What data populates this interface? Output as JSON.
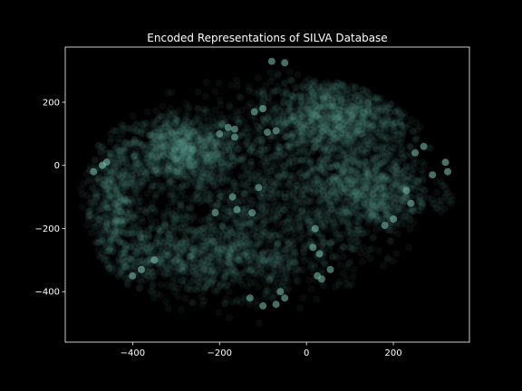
{
  "chart_data": {
    "type": "scatter",
    "title": "Encoded Representations of SILVA Database",
    "xlabel": "",
    "ylabel": "",
    "xlim": [
      -555,
      375
    ],
    "ylim": [
      -560,
      375
    ],
    "xticks": [
      -400,
      -200,
      0,
      200
    ],
    "yticks": [
      -400,
      -200,
      0,
      200
    ],
    "xtick_labels": [
      "−400",
      "−200",
      "0",
      "200"
    ],
    "ytick_labels": [
      "−400",
      "−200",
      "0",
      "200"
    ],
    "grid": false,
    "legend": "none",
    "colors": {
      "background": "#000000",
      "axes_face": "#000000",
      "spine": "#ffffff",
      "text": "#ffffff",
      "marker": "#7fc8b8"
    },
    "marker_alpha": 0.06,
    "clusters": [
      {
        "name": "upper-left dense region",
        "center": [
          -290,
          50
        ],
        "spread": [
          65,
          55
        ],
        "points": 900
      },
      {
        "name": "upper-right dense region",
        "center": [
          60,
          150
        ],
        "spread": [
          90,
          65
        ],
        "points": 1200
      },
      {
        "name": "right dense region",
        "center": [
          140,
          -80
        ],
        "spread": [
          75,
          70
        ],
        "points": 900
      },
      {
        "name": "outer arc lower-left",
        "center": [
          -230,
          -290
        ],
        "spread": [
          140,
          60
        ],
        "points": 900
      },
      {
        "name": "left edge",
        "center": [
          -440,
          -120
        ],
        "spread": [
          35,
          110
        ],
        "points": 500
      },
      {
        "name": "interior diffuse",
        "center": [
          -120,
          -100
        ],
        "spread": [
          170,
          140
        ],
        "points": 1200
      }
    ],
    "highlight_points": [
      [
        -80,
        330
      ],
      [
        -50,
        325
      ],
      [
        -120,
        170
      ],
      [
        -100,
        180
      ],
      [
        -180,
        120
      ],
      [
        -165,
        115
      ],
      [
        -90,
        105
      ],
      [
        -70,
        110
      ],
      [
        -165,
        90
      ],
      [
        -200,
        100
      ],
      [
        -170,
        -100
      ],
      [
        -110,
        -70
      ],
      [
        -160,
        -140
      ],
      [
        -210,
        -150
      ],
      [
        -125,
        -150
      ],
      [
        20,
        -200
      ],
      [
        15,
        -260
      ],
      [
        30,
        -280
      ],
      [
        55,
        -330
      ],
      [
        25,
        -350
      ],
      [
        35,
        -360
      ],
      [
        -60,
        -400
      ],
      [
        -50,
        -420
      ],
      [
        -70,
        -440
      ],
      [
        -100,
        -445
      ],
      [
        -130,
        -420
      ],
      [
        -380,
        -330
      ],
      [
        -400,
        -350
      ],
      [
        -350,
        -300
      ],
      [
        -460,
        10
      ],
      [
        -470,
        0
      ],
      [
        -490,
        -20
      ],
      [
        320,
        10
      ],
      [
        325,
        -20
      ],
      [
        290,
        -30
      ],
      [
        230,
        -80
      ],
      [
        240,
        -120
      ],
      [
        250,
        40
      ],
      [
        270,
        60
      ],
      [
        200,
        -170
      ],
      [
        180,
        -190
      ]
    ]
  }
}
